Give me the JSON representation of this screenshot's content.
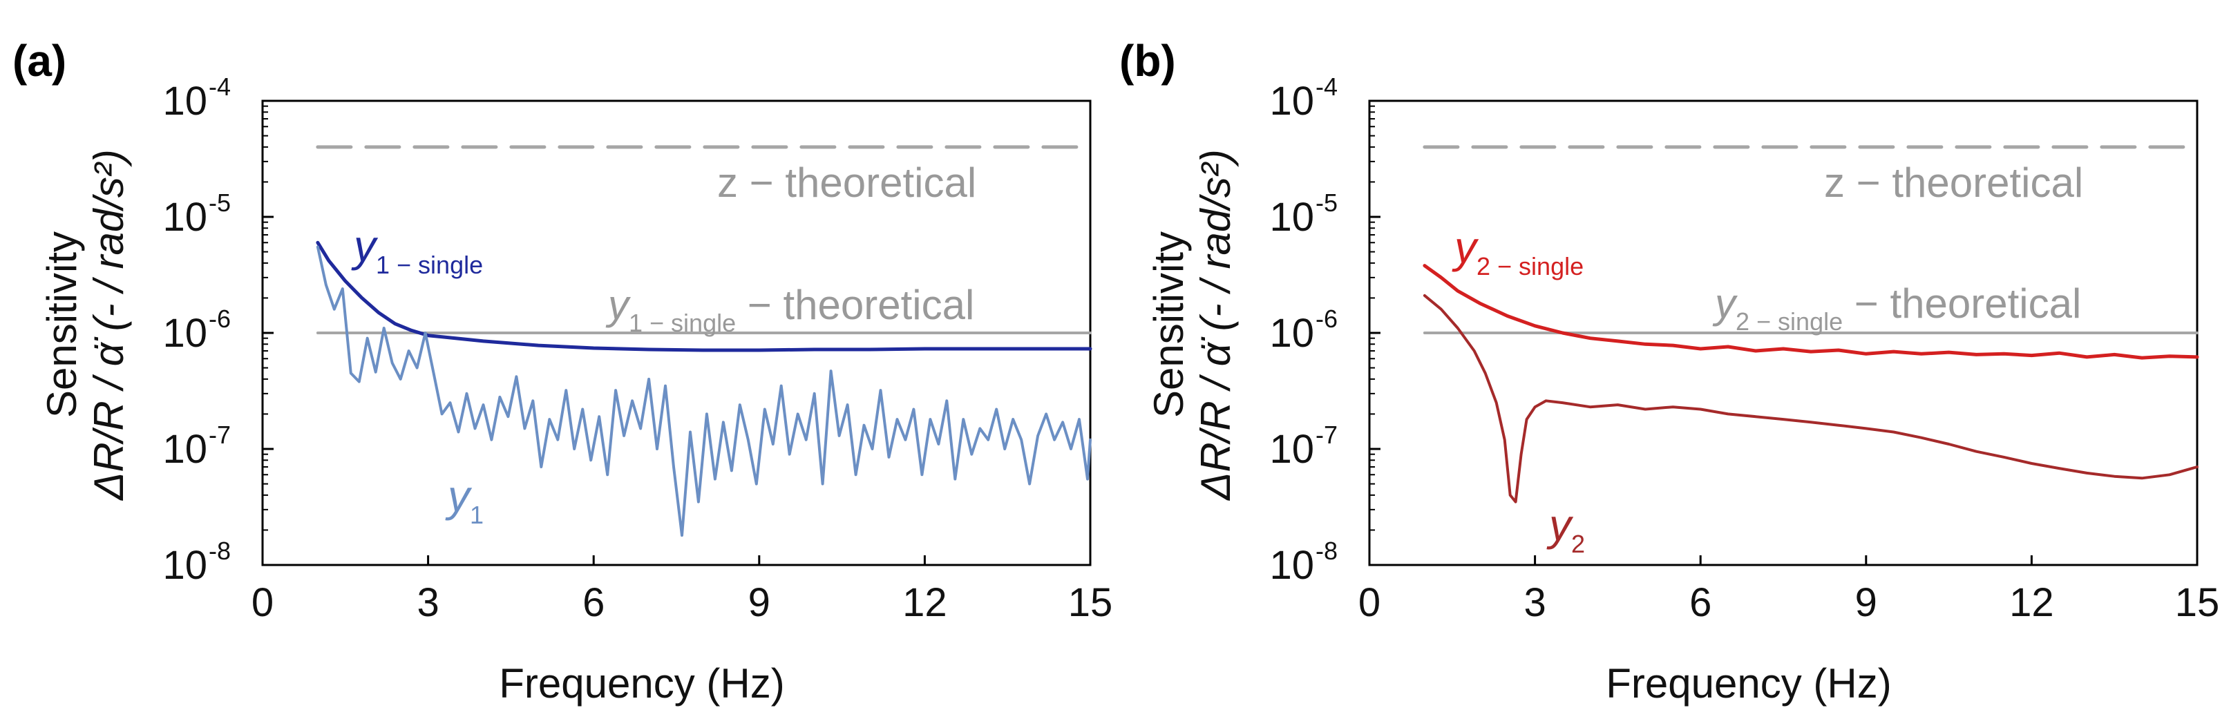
{
  "figure": {
    "panels": [
      {
        "label": "(a)",
        "ylabel_line1": "Sensitivity",
        "ylabel_line2": "ΔR/R / α̈ (- / rad/s²)",
        "xlabel": "Frequency (Hz)",
        "annotations": {
          "z_theoretical": "z − theoretical",
          "single_theoretical_main": "y",
          "single_theoretical_sub": "1 − single",
          "single_theoretical_suffix": " − theoretical",
          "single_curve_main": "y",
          "single_curve_sub": "1 − single",
          "curve_main": "y",
          "curve_sub": "1"
        }
      },
      {
        "label": "(b)",
        "ylabel_line1": "Sensitivity",
        "ylabel_line2": "ΔR/R / α̈ (- / rad/s²)",
        "xlabel": "Frequency (Hz)",
        "annotations": {
          "z_theoretical": "z − theoretical",
          "single_theoretical_main": "y",
          "single_theoretical_sub": "2 − single",
          "single_theoretical_suffix": " − theoretical",
          "single_curve_main": "y",
          "single_curve_sub": "2 − single",
          "curve_main": "y",
          "curve_sub": "2"
        }
      }
    ]
  },
  "chart_data": [
    {
      "type": "line",
      "xlabel": "Frequency (Hz)",
      "ylabel": "Sensitivity ΔR/R / α̈ (- / rad/s²)",
      "xlim": [
        0,
        15
      ],
      "ylim": [
        1e-08,
        0.0001
      ],
      "yscale": "log",
      "xticks": [
        "0",
        "3",
        "6",
        "9",
        "12",
        "15"
      ],
      "yticks": [
        "10-8",
        "10-7",
        "10-6",
        "10-5",
        "10-4"
      ],
      "grid": false,
      "series": [
        {
          "name": "z − theoretical",
          "color": "#a6a6a6",
          "dash": true,
          "x": [
            1,
            15
          ],
          "y": [
            4e-05,
            4e-05
          ]
        },
        {
          "name": "y1 − single − theoretical",
          "color": "#a6a6a6",
          "dash": false,
          "x": [
            1,
            15
          ],
          "y": [
            1e-06,
            1e-06
          ]
        },
        {
          "name": "y1 − single",
          "color": "#1f2a9c",
          "dash": false,
          "x": [
            1.0,
            1.2,
            1.5,
            1.8,
            2.1,
            2.4,
            2.7,
            3.0,
            3.5,
            4.0,
            5.0,
            6.0,
            7.0,
            8.0,
            9.0,
            10.0,
            11.0,
            12.0,
            13.0,
            14.0,
            15.0
          ],
          "y": [
            6e-06,
            4.2e-06,
            2.8e-06,
            2e-06,
            1.5e-06,
            1.2e-06,
            1.05e-06,
            9.5e-07,
            9e-07,
            8.5e-07,
            7.8e-07,
            7.4e-07,
            7.2e-07,
            7.1e-07,
            7.1e-07,
            7.2e-07,
            7.2e-07,
            7.3e-07,
            7.3e-07,
            7.3e-07,
            7.3e-07
          ]
        },
        {
          "name": "y1",
          "color": "#6b8fc4",
          "dash": false,
          "x": [
            1.0,
            1.15,
            1.3,
            1.45,
            1.6,
            1.75,
            1.9,
            2.05,
            2.2,
            2.35,
            2.5,
            2.65,
            2.8,
            2.95,
            3.1,
            3.25,
            3.4,
            3.55,
            3.7,
            3.85,
            4.0,
            4.15,
            4.3,
            4.45,
            4.6,
            4.75,
            4.9,
            5.05,
            5.2,
            5.35,
            5.5,
            5.65,
            5.8,
            5.95,
            6.1,
            6.25,
            6.4,
            6.55,
            6.7,
            6.85,
            7.0,
            7.15,
            7.3,
            7.45,
            7.6,
            7.75,
            7.9,
            8.05,
            8.2,
            8.35,
            8.5,
            8.65,
            8.8,
            8.95,
            9.1,
            9.25,
            9.4,
            9.55,
            9.7,
            9.85,
            10.0,
            10.15,
            10.3,
            10.45,
            10.6,
            10.75,
            10.9,
            11.05,
            11.2,
            11.35,
            11.5,
            11.65,
            11.8,
            11.95,
            12.1,
            12.25,
            12.4,
            12.55,
            12.7,
            12.85,
            13.0,
            13.15,
            13.3,
            13.45,
            13.6,
            13.75,
            13.9,
            14.05,
            14.2,
            14.35,
            14.5,
            14.65,
            14.8,
            14.95,
            15.0
          ],
          "y": [
            5.5e-06,
            2.6e-06,
            1.6e-06,
            2.4e-06,
            4.5e-07,
            3.8e-07,
            9e-07,
            4.6e-07,
            1.1e-06,
            5.5e-07,
            4e-07,
            7e-07,
            5e-07,
            1e-06,
            4.5e-07,
            2e-07,
            2.5e-07,
            1.4e-07,
            3e-07,
            1.5e-07,
            2.4e-07,
            1.2e-07,
            2.8e-07,
            1.9e-07,
            4.2e-07,
            1.5e-07,
            2.6e-07,
            7e-08,
            1.8e-07,
            1.2e-07,
            3.2e-07,
            1e-07,
            2.2e-07,
            8e-08,
            1.9e-07,
            6e-08,
            3.2e-07,
            1.3e-07,
            2.6e-07,
            1.5e-07,
            4e-07,
            1e-07,
            3.5e-07,
            7e-08,
            1.8e-08,
            1.4e-07,
            3.5e-08,
            2e-07,
            5.5e-08,
            1.7e-07,
            6.5e-08,
            2.4e-07,
            1.2e-07,
            5e-08,
            2.2e-07,
            1.1e-07,
            3.5e-07,
            9e-08,
            2e-07,
            1.2e-07,
            3e-07,
            5e-08,
            4.7e-07,
            1.3e-07,
            2.4e-07,
            6e-08,
            1.6e-07,
            1e-07,
            3.2e-07,
            8.5e-08,
            1.8e-07,
            1.2e-07,
            2.2e-07,
            6e-08,
            1.8e-07,
            1.1e-07,
            2.6e-07,
            5.5e-08,
            1.8e-07,
            9e-08,
            1.5e-07,
            1.2e-07,
            2.2e-07,
            1e-07,
            1.8e-07,
            1.2e-07,
            5e-08,
            1.3e-07,
            2e-07,
            1.2e-07,
            1.7e-07,
            1e-07,
            1.8e-07,
            5.5e-08,
            1.2e-07
          ]
        }
      ]
    },
    {
      "type": "line",
      "xlabel": "Frequency (Hz)",
      "ylabel": "Sensitivity ΔR/R / α̈ (- / rad/s²)",
      "xlim": [
        0,
        15
      ],
      "ylim": [
        1e-08,
        0.0001
      ],
      "yscale": "log",
      "xticks": [
        "0",
        "3",
        "6",
        "9",
        "12",
        "15"
      ],
      "yticks": [
        "10-8",
        "10-7",
        "10-6",
        "10-5",
        "10-4"
      ],
      "grid": false,
      "series": [
        {
          "name": "z − theoretical",
          "color": "#a6a6a6",
          "dash": true,
          "x": [
            1,
            15
          ],
          "y": [
            4e-05,
            4e-05
          ]
        },
        {
          "name": "y2 − single − theoretical",
          "color": "#a6a6a6",
          "dash": false,
          "x": [
            1,
            15
          ],
          "y": [
            1e-06,
            1e-06
          ]
        },
        {
          "name": "y2 − single",
          "color": "#d42020",
          "dash": false,
          "x": [
            1.0,
            1.3,
            1.6,
            2.0,
            2.5,
            3.0,
            3.5,
            4.0,
            4.5,
            5.0,
            5.5,
            6.0,
            6.5,
            7.0,
            7.5,
            8.0,
            8.5,
            9.0,
            9.5,
            10.0,
            10.5,
            11.0,
            11.5,
            12.0,
            12.5,
            13.0,
            13.5,
            14.0,
            14.5,
            15.0
          ],
          "y": [
            3.8e-06,
            3e-06,
            2.3e-06,
            1.8e-06,
            1.4e-06,
            1.15e-06,
            1e-06,
            9e-07,
            8.5e-07,
            8e-07,
            7.8e-07,
            7.3e-07,
            7.6e-07,
            7e-07,
            7.3e-07,
            6.9e-07,
            7.1e-07,
            6.6e-07,
            6.9e-07,
            6.6e-07,
            6.8e-07,
            6.5e-07,
            6.6e-07,
            6.4e-07,
            6.7e-07,
            6.2e-07,
            6.5e-07,
            6.1e-07,
            6.3e-07,
            6.2e-07
          ]
        },
        {
          "name": "y2",
          "color": "#a52a2a",
          "dash": false,
          "x": [
            1.0,
            1.3,
            1.6,
            1.9,
            2.1,
            2.3,
            2.45,
            2.55,
            2.65,
            2.75,
            2.85,
            3.0,
            3.2,
            3.5,
            4.0,
            4.5,
            5.0,
            5.5,
            6.0,
            6.5,
            7.0,
            7.5,
            8.0,
            8.5,
            9.0,
            9.5,
            10.0,
            10.5,
            11.0,
            11.5,
            12.0,
            12.5,
            13.0,
            13.5,
            14.0,
            14.5,
            15.0
          ],
          "y": [
            2.1e-06,
            1.6e-06,
            1.1e-06,
            7e-07,
            4.5e-07,
            2.5e-07,
            1.2e-07,
            4e-08,
            3.5e-08,
            9e-08,
            1.8e-07,
            2.3e-07,
            2.6e-07,
            2.5e-07,
            2.3e-07,
            2.4e-07,
            2.2e-07,
            2.3e-07,
            2.2e-07,
            2e-07,
            1.9e-07,
            1.8e-07,
            1.7e-07,
            1.6e-07,
            1.5e-07,
            1.4e-07,
            1.25e-07,
            1.1e-07,
            9.5e-08,
            8.5e-08,
            7.5e-08,
            6.8e-08,
            6.2e-08,
            5.8e-08,
            5.6e-08,
            6e-08,
            7e-08
          ]
        }
      ]
    }
  ]
}
